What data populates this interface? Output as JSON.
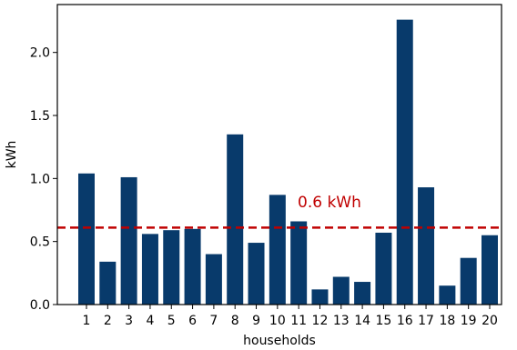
{
  "chart_data": {
    "type": "bar",
    "xlabel": "households",
    "ylabel": "kWh",
    "categories": [
      "1",
      "2",
      "3",
      "4",
      "5",
      "6",
      "7",
      "8",
      "9",
      "10",
      "11",
      "12",
      "13",
      "14",
      "15",
      "16",
      "17",
      "18",
      "19",
      "20"
    ],
    "values": [
      1.04,
      0.34,
      1.01,
      0.56,
      0.59,
      0.6,
      0.4,
      1.35,
      0.49,
      0.87,
      0.66,
      0.12,
      0.22,
      0.18,
      0.57,
      2.26,
      0.93,
      0.15,
      0.37,
      0.55
    ],
    "ylim": [
      0,
      2.38
    ],
    "yticks": [
      0.0,
      0.5,
      1.0,
      1.5,
      2.0
    ],
    "ytick_labels": [
      "0.0",
      "0.5",
      "1.0",
      "1.5",
      "2.0"
    ],
    "reference_line": {
      "value": 0.61,
      "label": "0.6 kWh",
      "style": "dashed",
      "color": "#c00000"
    },
    "bar_color": "#083a6b",
    "grid": false,
    "legend": "none"
  }
}
